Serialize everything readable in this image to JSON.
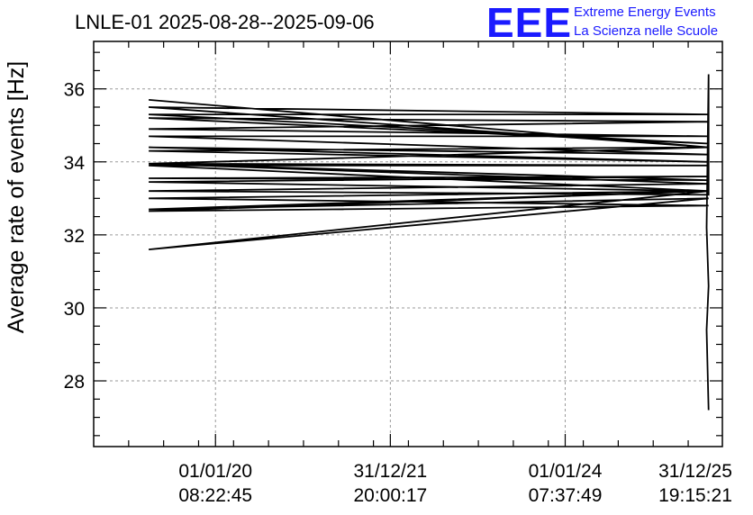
{
  "header": {
    "title": "LNLE-01 2025-08-28--2025-09-06",
    "logo_text": "EEE",
    "logo_line1": "Extreme Energy Events",
    "logo_line2": "La Scienza nelle Scuole",
    "logo_color": "#1a1aff"
  },
  "chart_data": {
    "type": "line",
    "title": "LNLE-01 2025-08-28--2025-09-06",
    "ylabel": "Average rate of events [Hz]",
    "xlabel": "",
    "ylim": [
      26.2,
      37.3
    ],
    "xlim": [
      0,
      3.2
    ],
    "grid": true,
    "yticks": [
      28,
      30,
      32,
      34,
      36
    ],
    "xticks": [
      {
        "x": 0.62,
        "line1": "01/01/20",
        "line2": "08:22:45"
      },
      {
        "x": 1.51,
        "line1": "31/12/21",
        "line2": "20:00:17"
      },
      {
        "x": 2.4,
        "line1": "01/01/24",
        "line2": "07:37:49"
      },
      {
        "x": 3.29,
        "line1": "31/12/25",
        "line2": "19:15:21"
      }
    ],
    "series": [
      {
        "color": "#000000",
        "x": [
          0.28,
          3.13,
          0.28,
          3.13,
          0.28,
          3.13,
          0.28,
          3.13,
          0.28,
          3.13,
          0.28,
          3.13,
          0.28,
          3.13,
          0.28,
          3.13,
          0.28,
          3.13,
          0.28,
          3.13,
          0.28,
          3.13,
          0.28,
          3.13,
          0.28,
          3.13,
          0.28,
          3.13,
          0.28,
          3.13,
          0.28,
          3.13,
          0.28,
          3.13,
          0.28,
          3.13,
          3.13,
          3.12,
          3.13,
          3.12,
          3.13
        ],
        "y": [
          35.7,
          34.4,
          35.5,
          35.3,
          35.3,
          34.5,
          35.2,
          35.1,
          34.9,
          34.7,
          34.7,
          34.2,
          34.4,
          34.0,
          34.3,
          34.4,
          33.95,
          33.5,
          33.55,
          33.6,
          33.45,
          33.2,
          33.0,
          32.8,
          32.65,
          33.2,
          32.7,
          33.0,
          31.6,
          33.2,
          33.9,
          33.9,
          33.95,
          33.4,
          33.2,
          33.1,
          36.4,
          32.2,
          30.6,
          29.4,
          27.2
        ]
      }
    ]
  }
}
